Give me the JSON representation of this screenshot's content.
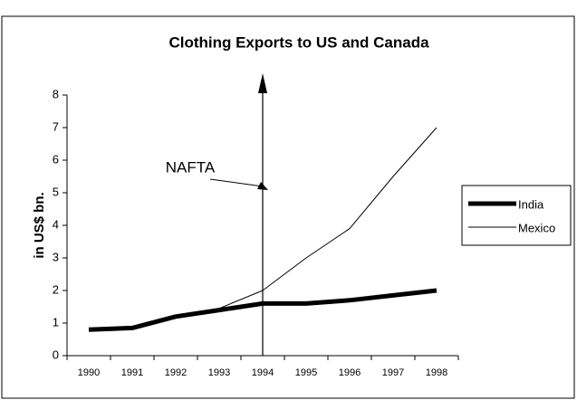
{
  "chart_data": {
    "type": "line",
    "title": "Clothing Exports to US and Canada",
    "y_label": "in US$ bn.",
    "annotation": "NAFTA",
    "categories": [
      "1990",
      "1991",
      "1992",
      "1993",
      "1994",
      "1995",
      "1996",
      "1997",
      "1998"
    ],
    "series": [
      {
        "name": "India",
        "color": "#000000",
        "values": [
          0.8,
          0.85,
          1.2,
          1.4,
          1.6,
          1.6,
          1.7,
          1.85,
          2.0
        ]
      },
      {
        "name": "Mexico",
        "color": "#000000",
        "values": [
          0.8,
          0.9,
          1.2,
          1.45,
          2.0,
          3.0,
          3.9,
          5.5,
          7.0
        ]
      }
    ],
    "ylim": [
      0,
      8
    ],
    "yticks": [
      0,
      1,
      2,
      3,
      4,
      5,
      6,
      7,
      8
    ],
    "grid": false,
    "legend": "right"
  }
}
